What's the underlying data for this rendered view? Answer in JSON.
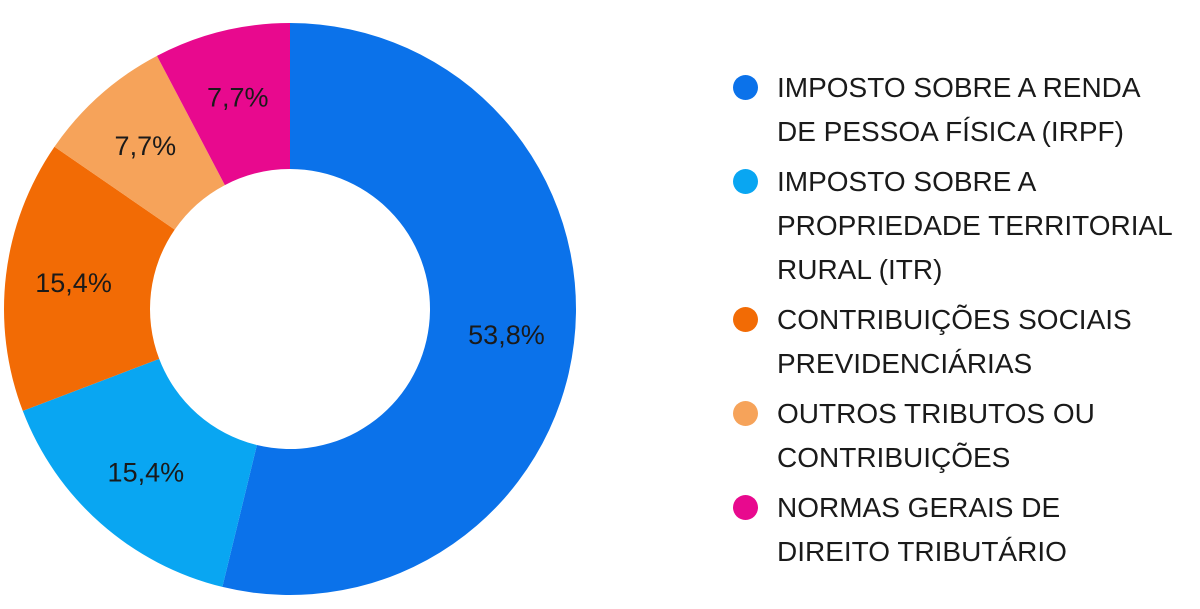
{
  "chart_data": {
    "type": "pie",
    "variant": "donut",
    "title": "",
    "legend_position": "right",
    "slices": [
      {
        "label": "IMPOSTO SOBRE A RENDA\nDE PESSOA FÍSICA (IRPF)",
        "value": 53.8,
        "display": "53,8%",
        "color": "#0b72ea"
      },
      {
        "label": "IMPOSTO SOBRE A\nPROPRIEDADE TERRITORIAL\nRURAL (ITR)",
        "value": 15.4,
        "display": "15,4%",
        "color": "#09a6f2"
      },
      {
        "label": "CONTRIBUIÇÕES SOCIAIS\nPREVIDENCIÁRIAS",
        "value": 15.4,
        "display": "15,4%",
        "color": "#f26b05"
      },
      {
        "label": "OUTROS TRIBUTOS OU\nCONTRIBUIÇÕES",
        "value": 7.7,
        "display": "7,7%",
        "color": "#f6a35a"
      },
      {
        "label": "NORMAS GERAIS DE\nDIREITO TRIBUTÁRIO",
        "value": 7.7,
        "display": "7,7%",
        "color": "#e8098e"
      }
    ]
  }
}
